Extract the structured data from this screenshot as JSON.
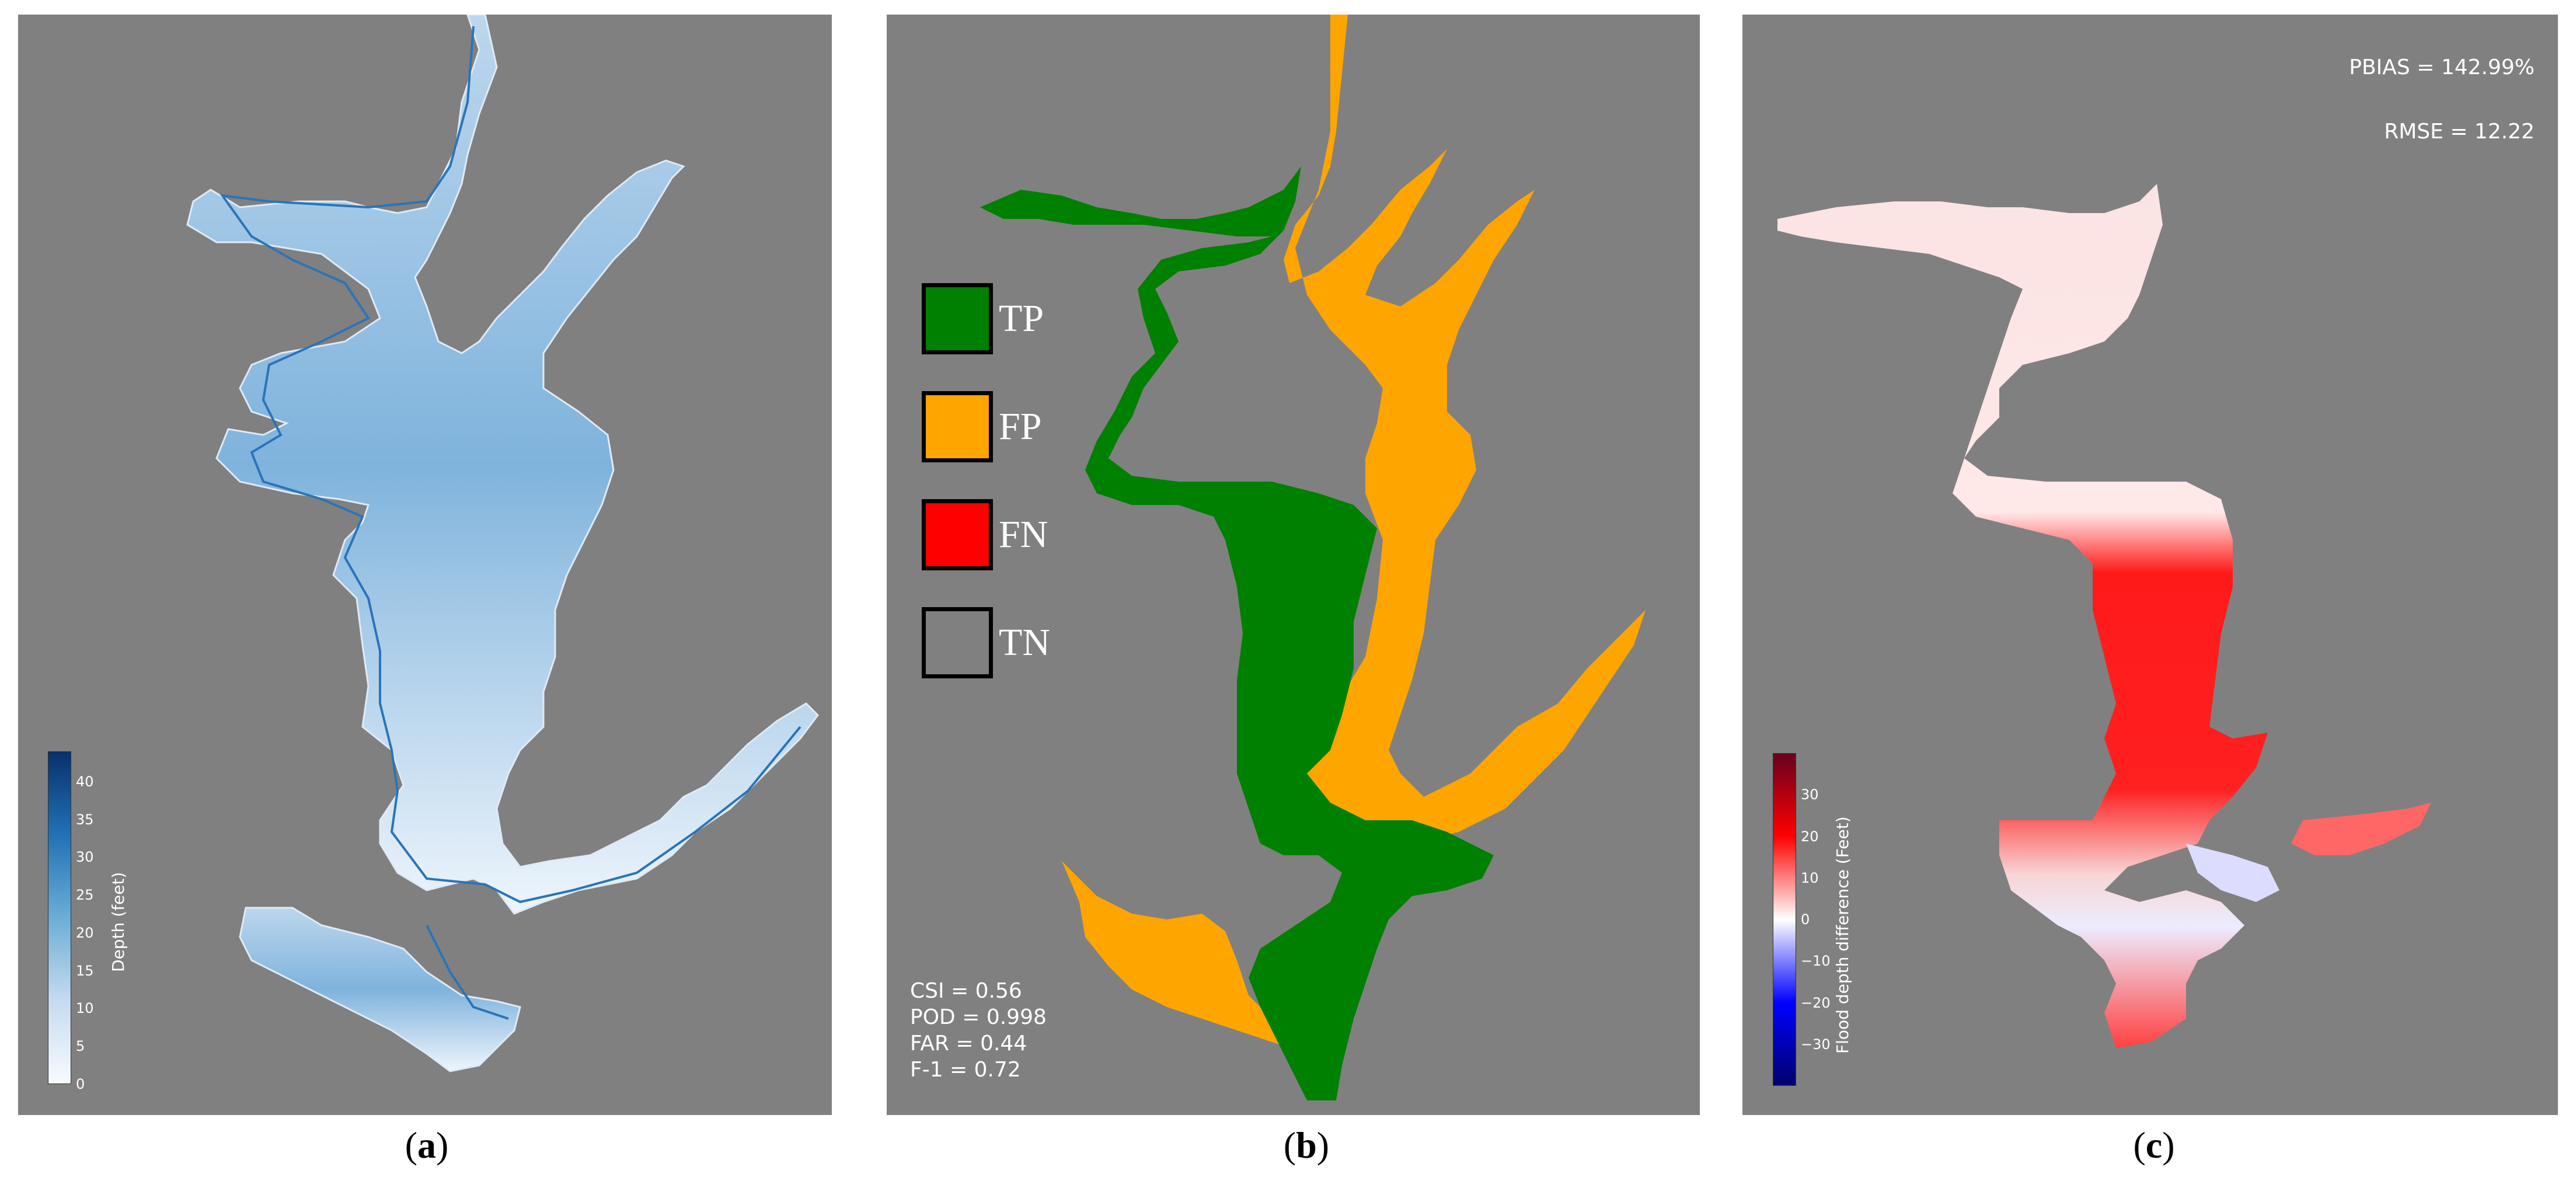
{
  "panels": {
    "a": {
      "caption_letter": "a",
      "colorbar": {
        "label": "Depth (feet)",
        "ticks": [
          "0",
          "5",
          "10",
          "15",
          "20",
          "25",
          "30",
          "35",
          "40"
        ],
        "min": 0,
        "max": 44,
        "colors": [
          "#f7fbff",
          "#c6dbef",
          "#6baed6",
          "#2171b5",
          "#08306b"
        ]
      }
    },
    "b": {
      "caption_letter": "b",
      "legend": [
        {
          "label": "TP",
          "color": "#008000"
        },
        {
          "label": "FP",
          "color": "#ffa500"
        },
        {
          "label": "FN",
          "color": "#ff0000"
        },
        {
          "label": "TN",
          "color": "#808080"
        }
      ],
      "metrics": [
        "CSI = 0.56",
        "POD = 0.998",
        "FAR = 0.44",
        "F-1 = 0.72"
      ]
    },
    "c": {
      "caption_letter": "c",
      "stats": [
        "PBIAS = 142.99%",
        "RMSE = 12.22"
      ],
      "colorbar": {
        "label": "Flood depth difference (Feet)",
        "ticks": [
          "30",
          "20",
          "10",
          "0",
          "−10",
          "−20",
          "−30"
        ],
        "min": -40,
        "max": 40,
        "colors": [
          "#67001f",
          "#ff0000",
          "#ffffff",
          "#0000ff",
          "#00006b"
        ]
      }
    }
  }
}
